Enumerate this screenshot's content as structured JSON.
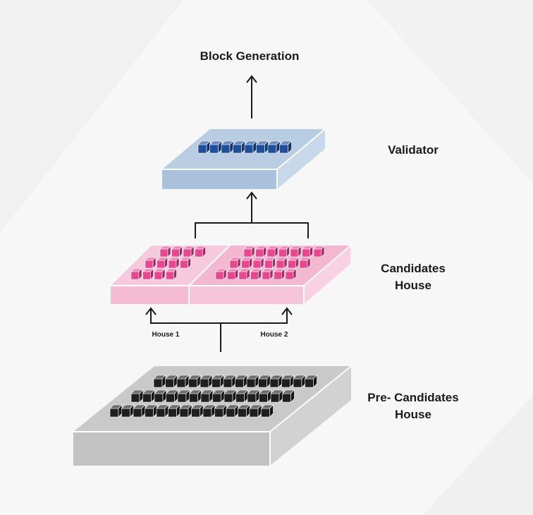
{
  "title": "Block Generation",
  "layers": {
    "validator": {
      "label": "Validator",
      "blocks": [
        8
      ]
    },
    "candidates": {
      "label_line1": "Candidates",
      "label_line2": "House",
      "house1": {
        "label": "House 1",
        "rows": [
          4,
          4,
          4
        ]
      },
      "house2": {
        "label": "House 2",
        "rows": [
          7,
          7,
          7
        ]
      }
    },
    "pre_candidates": {
      "label_line1": "Pre- Candidates",
      "label_line2": "House",
      "rows": [
        14,
        14,
        14
      ]
    }
  },
  "colors": {
    "background": "#f7f7f7",
    "validator_top": "#b8cde2",
    "validator_side": "#a8c0d8",
    "validator_block": "#1f4e9c",
    "candidates_top": "#f6c8db",
    "candidates_side": "#f3b6cf",
    "candidates_block": "#e8468e",
    "pre_top": "#c9c9c9",
    "pre_side": "#b9b9b9",
    "pre_block": "#1f1f1f",
    "arrow": "#1a1a1a"
  }
}
